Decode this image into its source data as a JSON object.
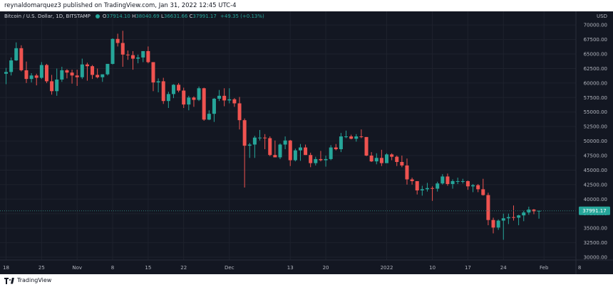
{
  "header": {
    "published_text": "reynaldomarquez3 published on TradingView.com, Jan 31, 2022 12:45 UTC-4"
  },
  "legend": {
    "symbol": "Bitcoin / U.S. Dollar, 1D, BITSTAMP",
    "open_label": "O",
    "open": "37914.10",
    "high_label": "H",
    "high": "38040.69",
    "low_label": "L",
    "low": "36631.66",
    "close_label": "C",
    "close": "37991.17",
    "change": "+49.35 (+0.13%)"
  },
  "price_axis": {
    "currency": "USD",
    "current_price_tag": "37991.17"
  },
  "footer": {
    "brand": "TradingView"
  },
  "colors": {
    "background": "#131722",
    "up": "#26a69a",
    "down": "#ef5350",
    "axis_text": "#b2b5be",
    "grid": "#1e222d"
  },
  "chart_data": {
    "type": "candlestick",
    "interval": "1D",
    "ylim": [
      30000,
      71000
    ],
    "y_ticks": [
      "70000.00",
      "67500.00",
      "65000.00",
      "62500.00",
      "60000.00",
      "57500.00",
      "55000.00",
      "52500.00",
      "50000.00",
      "47500.00",
      "45000.00",
      "42500.00",
      "40000.00",
      "37500.00",
      "35000.00",
      "32500.00",
      "30000.00"
    ],
    "x_ticks": [
      "18",
      "25",
      "Nov",
      "8",
      "15",
      "22",
      "Dec",
      "13",
      "20",
      "2022",
      "10",
      "17",
      "24",
      "Feb",
      "8"
    ],
    "date_range": [
      "2021-10-18",
      "2022-01-31"
    ],
    "series": [
      {
        "name": "BTCUSD",
        "candles": [
          {
            "d": "2021-10-18",
            "o": 61600,
            "h": 62600,
            "l": 59800,
            "c": 61900
          },
          {
            "d": "2021-10-19",
            "o": 61900,
            "h": 64400,
            "l": 61300,
            "c": 63900
          },
          {
            "d": "2021-10-20",
            "o": 63900,
            "h": 67000,
            "l": 63800,
            "c": 66000
          },
          {
            "d": "2021-10-21",
            "o": 66000,
            "h": 66500,
            "l": 62000,
            "c": 62200
          },
          {
            "d": "2021-10-22",
            "o": 62200,
            "h": 63700,
            "l": 60000,
            "c": 60700
          },
          {
            "d": "2021-10-23",
            "o": 60700,
            "h": 61700,
            "l": 60100,
            "c": 61300
          },
          {
            "d": "2021-10-24",
            "o": 61300,
            "h": 61600,
            "l": 59600,
            "c": 60900
          },
          {
            "d": "2021-10-25",
            "o": 60900,
            "h": 63600,
            "l": 60700,
            "c": 63100
          },
          {
            "d": "2021-10-26",
            "o": 63100,
            "h": 63300,
            "l": 60000,
            "c": 60300
          },
          {
            "d": "2021-10-27",
            "o": 60300,
            "h": 61400,
            "l": 58000,
            "c": 58600
          },
          {
            "d": "2021-10-28",
            "o": 58600,
            "h": 62500,
            "l": 57800,
            "c": 60600
          },
          {
            "d": "2021-10-29",
            "o": 60600,
            "h": 62800,
            "l": 60200,
            "c": 62200
          },
          {
            "d": "2021-10-30",
            "o": 62200,
            "h": 62400,
            "l": 60800,
            "c": 61800
          },
          {
            "d": "2021-10-31",
            "o": 61800,
            "h": 62300,
            "l": 59900,
            "c": 61300
          },
          {
            "d": "2021-11-01",
            "o": 61300,
            "h": 62300,
            "l": 59500,
            "c": 61000
          },
          {
            "d": "2021-11-02",
            "o": 61000,
            "h": 64200,
            "l": 60700,
            "c": 63200
          },
          {
            "d": "2021-11-03",
            "o": 63200,
            "h": 63500,
            "l": 60400,
            "c": 62900
          },
          {
            "d": "2021-11-04",
            "o": 62900,
            "h": 63100,
            "l": 60700,
            "c": 61400
          },
          {
            "d": "2021-11-05",
            "o": 61400,
            "h": 62500,
            "l": 60800,
            "c": 61000
          },
          {
            "d": "2021-11-06",
            "o": 61000,
            "h": 61500,
            "l": 60200,
            "c": 61500
          },
          {
            "d": "2021-11-07",
            "o": 61500,
            "h": 63200,
            "l": 61300,
            "c": 63300
          },
          {
            "d": "2021-11-08",
            "o": 63300,
            "h": 67700,
            "l": 63200,
            "c": 67600
          },
          {
            "d": "2021-11-09",
            "o": 67600,
            "h": 68500,
            "l": 66300,
            "c": 66900
          },
          {
            "d": "2021-11-10",
            "o": 66900,
            "h": 69000,
            "l": 62800,
            "c": 64900
          },
          {
            "d": "2021-11-11",
            "o": 64900,
            "h": 65600,
            "l": 64000,
            "c": 64800
          },
          {
            "d": "2021-11-12",
            "o": 64800,
            "h": 65500,
            "l": 62300,
            "c": 64200
          },
          {
            "d": "2021-11-13",
            "o": 64200,
            "h": 64900,
            "l": 63400,
            "c": 64400
          },
          {
            "d": "2021-11-14",
            "o": 64400,
            "h": 65500,
            "l": 63600,
            "c": 65500
          },
          {
            "d": "2021-11-15",
            "o": 65500,
            "h": 66300,
            "l": 63400,
            "c": 63600
          },
          {
            "d": "2021-11-16",
            "o": 63600,
            "h": 63600,
            "l": 58600,
            "c": 60100
          },
          {
            "d": "2021-11-17",
            "o": 60100,
            "h": 60800,
            "l": 58400,
            "c": 60300
          },
          {
            "d": "2021-11-18",
            "o": 60300,
            "h": 60900,
            "l": 56400,
            "c": 56900
          },
          {
            "d": "2021-11-19",
            "o": 56900,
            "h": 58500,
            "l": 55700,
            "c": 58100
          },
          {
            "d": "2021-11-20",
            "o": 58100,
            "h": 59800,
            "l": 57400,
            "c": 59700
          },
          {
            "d": "2021-11-21",
            "o": 59700,
            "h": 60000,
            "l": 58400,
            "c": 58700
          },
          {
            "d": "2021-11-22",
            "o": 58700,
            "h": 59200,
            "l": 55700,
            "c": 56300
          },
          {
            "d": "2021-11-23",
            "o": 56300,
            "h": 57800,
            "l": 55300,
            "c": 57500
          },
          {
            "d": "2021-11-24",
            "o": 57500,
            "h": 57700,
            "l": 55900,
            "c": 57100
          },
          {
            "d": "2021-11-25",
            "o": 57100,
            "h": 59400,
            "l": 56900,
            "c": 59100
          },
          {
            "d": "2021-11-26",
            "o": 59100,
            "h": 59200,
            "l": 53500,
            "c": 53700
          },
          {
            "d": "2021-11-27",
            "o": 53700,
            "h": 55300,
            "l": 53600,
            "c": 54700
          },
          {
            "d": "2021-11-28",
            "o": 54700,
            "h": 57400,
            "l": 53300,
            "c": 57300
          },
          {
            "d": "2021-11-29",
            "o": 57300,
            "h": 58800,
            "l": 56900,
            "c": 57800
          },
          {
            "d": "2021-11-30",
            "o": 57800,
            "h": 59100,
            "l": 56000,
            "c": 57000
          },
          {
            "d": "2021-12-01",
            "o": 57000,
            "h": 59100,
            "l": 56500,
            "c": 57200
          },
          {
            "d": "2021-12-02",
            "o": 57200,
            "h": 57400,
            "l": 55900,
            "c": 56500
          },
          {
            "d": "2021-12-03",
            "o": 56500,
            "h": 57600,
            "l": 52000,
            "c": 53600
          },
          {
            "d": "2021-12-04",
            "o": 53600,
            "h": 53900,
            "l": 42000,
            "c": 49200
          },
          {
            "d": "2021-12-05",
            "o": 49200,
            "h": 49700,
            "l": 47100,
            "c": 49400
          },
          {
            "d": "2021-12-06",
            "o": 49400,
            "h": 50900,
            "l": 47100,
            "c": 50600
          },
          {
            "d": "2021-12-07",
            "o": 50600,
            "h": 51900,
            "l": 50100,
            "c": 50600
          },
          {
            "d": "2021-12-08",
            "o": 50600,
            "h": 51200,
            "l": 48600,
            "c": 50500
          },
          {
            "d": "2021-12-09",
            "o": 50500,
            "h": 50800,
            "l": 47400,
            "c": 47600
          },
          {
            "d": "2021-12-10",
            "o": 47600,
            "h": 50100,
            "l": 47300,
            "c": 47200
          },
          {
            "d": "2021-12-11",
            "o": 47200,
            "h": 49600,
            "l": 46900,
            "c": 49400
          },
          {
            "d": "2021-12-12",
            "o": 49400,
            "h": 50800,
            "l": 48600,
            "c": 50100
          },
          {
            "d": "2021-12-13",
            "o": 50100,
            "h": 50200,
            "l": 45700,
            "c": 46700
          },
          {
            "d": "2021-12-14",
            "o": 46700,
            "h": 48700,
            "l": 46500,
            "c": 48400
          },
          {
            "d": "2021-12-15",
            "o": 48400,
            "h": 49500,
            "l": 46600,
            "c": 48900
          },
          {
            "d": "2021-12-16",
            "o": 48900,
            "h": 49400,
            "l": 47600,
            "c": 47600
          },
          {
            "d": "2021-12-17",
            "o": 47600,
            "h": 48000,
            "l": 45500,
            "c": 46200
          },
          {
            "d": "2021-12-18",
            "o": 46200,
            "h": 47300,
            "l": 45800,
            "c": 46900
          },
          {
            "d": "2021-12-19",
            "o": 46900,
            "h": 48300,
            "l": 46500,
            "c": 46700
          },
          {
            "d": "2021-12-20",
            "o": 46700,
            "h": 47500,
            "l": 45600,
            "c": 46900
          },
          {
            "d": "2021-12-21",
            "o": 46900,
            "h": 49300,
            "l": 46700,
            "c": 48900
          },
          {
            "d": "2021-12-22",
            "o": 48900,
            "h": 49500,
            "l": 48400,
            "c": 48600
          },
          {
            "d": "2021-12-23",
            "o": 48600,
            "h": 51400,
            "l": 48100,
            "c": 50800
          },
          {
            "d": "2021-12-24",
            "o": 50800,
            "h": 51800,
            "l": 50500,
            "c": 50800
          },
          {
            "d": "2021-12-25",
            "o": 50800,
            "h": 51100,
            "l": 50300,
            "c": 50400
          },
          {
            "d": "2021-12-26",
            "o": 50400,
            "h": 51200,
            "l": 49900,
            "c": 50800
          },
          {
            "d": "2021-12-27",
            "o": 50800,
            "h": 52000,
            "l": 50500,
            "c": 50700
          },
          {
            "d": "2021-12-28",
            "o": 50700,
            "h": 50700,
            "l": 47400,
            "c": 47500
          },
          {
            "d": "2021-12-29",
            "o": 47500,
            "h": 48100,
            "l": 46400,
            "c": 46500
          },
          {
            "d": "2021-12-30",
            "o": 46500,
            "h": 47900,
            "l": 46000,
            "c": 47100
          },
          {
            "d": "2021-12-31",
            "o": 47100,
            "h": 48500,
            "l": 45700,
            "c": 46200
          },
          {
            "d": "2022-01-01",
            "o": 46200,
            "h": 47900,
            "l": 46200,
            "c": 47700
          },
          {
            "d": "2022-01-02",
            "o": 47700,
            "h": 47900,
            "l": 46700,
            "c": 47300
          },
          {
            "d": "2022-01-03",
            "o": 47300,
            "h": 47500,
            "l": 45700,
            "c": 46400
          },
          {
            "d": "2022-01-04",
            "o": 46400,
            "h": 47500,
            "l": 45500,
            "c": 45800
          },
          {
            "d": "2022-01-05",
            "o": 45800,
            "h": 47000,
            "l": 42500,
            "c": 43400
          },
          {
            "d": "2022-01-06",
            "o": 43400,
            "h": 43700,
            "l": 42500,
            "c": 43100
          },
          {
            "d": "2022-01-07",
            "o": 43100,
            "h": 43100,
            "l": 40800,
            "c": 41500
          },
          {
            "d": "2022-01-08",
            "o": 41500,
            "h": 42300,
            "l": 40600,
            "c": 41700
          },
          {
            "d": "2022-01-09",
            "o": 41700,
            "h": 42800,
            "l": 41300,
            "c": 41900
          },
          {
            "d": "2022-01-10",
            "o": 41900,
            "h": 42200,
            "l": 39700,
            "c": 41800
          },
          {
            "d": "2022-01-11",
            "o": 41800,
            "h": 43000,
            "l": 41300,
            "c": 42700
          },
          {
            "d": "2022-01-12",
            "o": 42700,
            "h": 44300,
            "l": 42500,
            "c": 43900
          },
          {
            "d": "2022-01-13",
            "o": 43900,
            "h": 44400,
            "l": 42300,
            "c": 42600
          },
          {
            "d": "2022-01-14",
            "o": 42600,
            "h": 43400,
            "l": 41800,
            "c": 43100
          },
          {
            "d": "2022-01-15",
            "o": 43100,
            "h": 43700,
            "l": 42600,
            "c": 43100
          },
          {
            "d": "2022-01-16",
            "o": 43100,
            "h": 43500,
            "l": 42700,
            "c": 43100
          },
          {
            "d": "2022-01-17",
            "o": 43100,
            "h": 43200,
            "l": 41600,
            "c": 42200
          },
          {
            "d": "2022-01-18",
            "o": 42200,
            "h": 42600,
            "l": 41200,
            "c": 42400
          },
          {
            "d": "2022-01-19",
            "o": 42400,
            "h": 42600,
            "l": 41200,
            "c": 41700
          },
          {
            "d": "2022-01-20",
            "o": 41700,
            "h": 43500,
            "l": 40600,
            "c": 40700
          },
          {
            "d": "2022-01-21",
            "o": 40700,
            "h": 41100,
            "l": 35500,
            "c": 36400
          },
          {
            "d": "2022-01-22",
            "o": 36400,
            "h": 36800,
            "l": 34100,
            "c": 35100
          },
          {
            "d": "2022-01-23",
            "o": 35100,
            "h": 36500,
            "l": 34700,
            "c": 36300
          },
          {
            "d": "2022-01-24",
            "o": 36300,
            "h": 37500,
            "l": 33000,
            "c": 36700
          },
          {
            "d": "2022-01-25",
            "o": 36700,
            "h": 37500,
            "l": 35700,
            "c": 36900
          },
          {
            "d": "2022-01-26",
            "o": 36900,
            "h": 38900,
            "l": 36300,
            "c": 36800
          },
          {
            "d": "2022-01-27",
            "o": 36800,
            "h": 37300,
            "l": 35500,
            "c": 37200
          },
          {
            "d": "2022-01-28",
            "o": 37200,
            "h": 38000,
            "l": 36200,
            "c": 37700
          },
          {
            "d": "2022-01-29",
            "o": 37700,
            "h": 38700,
            "l": 37300,
            "c": 38200
          },
          {
            "d": "2022-01-30",
            "o": 38200,
            "h": 38300,
            "l": 37400,
            "c": 37900
          },
          {
            "d": "2022-01-31",
            "o": 37914.1,
            "h": 38040.69,
            "l": 36631.66,
            "c": 37991.17
          }
        ]
      }
    ]
  }
}
